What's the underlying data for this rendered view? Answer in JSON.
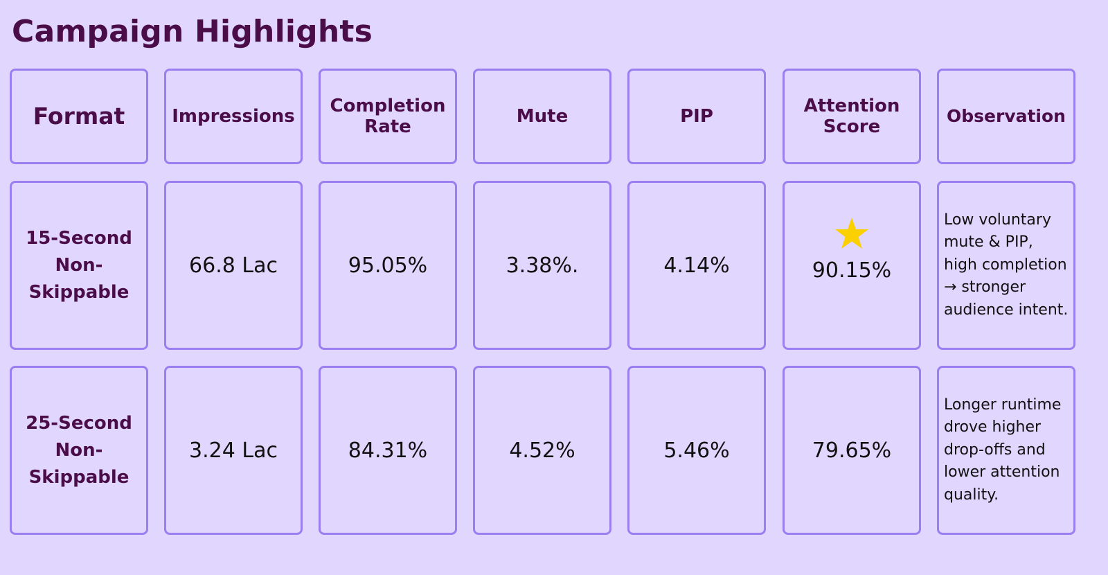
{
  "title": "Campaign Highlights",
  "table": {
    "headers": [
      "Format",
      "Impressions",
      "Completion Rate",
      "Mute",
      "PIP",
      "Attention Score",
      "Observation"
    ],
    "rows": [
      {
        "format": "15-Second Non-Skippable",
        "impressions": "66.8 Lac",
        "completion_rate": "95.05%",
        "mute": "3.38%.",
        "pip": "4.14%",
        "attention_score": "90.15%",
        "attention_icon": "star-icon",
        "observation": "Low voluntary mute & PIP, high completion → stronger audience intent."
      },
      {
        "format": "25-Second Non-Skippable",
        "impressions": "3.24 Lac",
        "completion_rate": "84.31%",
        "mute": "4.52%",
        "pip": "5.46%",
        "attention_score": "79.65%",
        "observation": "Longer runtime drove higher drop-offs and lower attention quality."
      }
    ]
  },
  "colors": {
    "background": "#e0d6fe",
    "border": "#9b7ff0",
    "heading": "#4a0d48",
    "star": "#fbd000"
  }
}
